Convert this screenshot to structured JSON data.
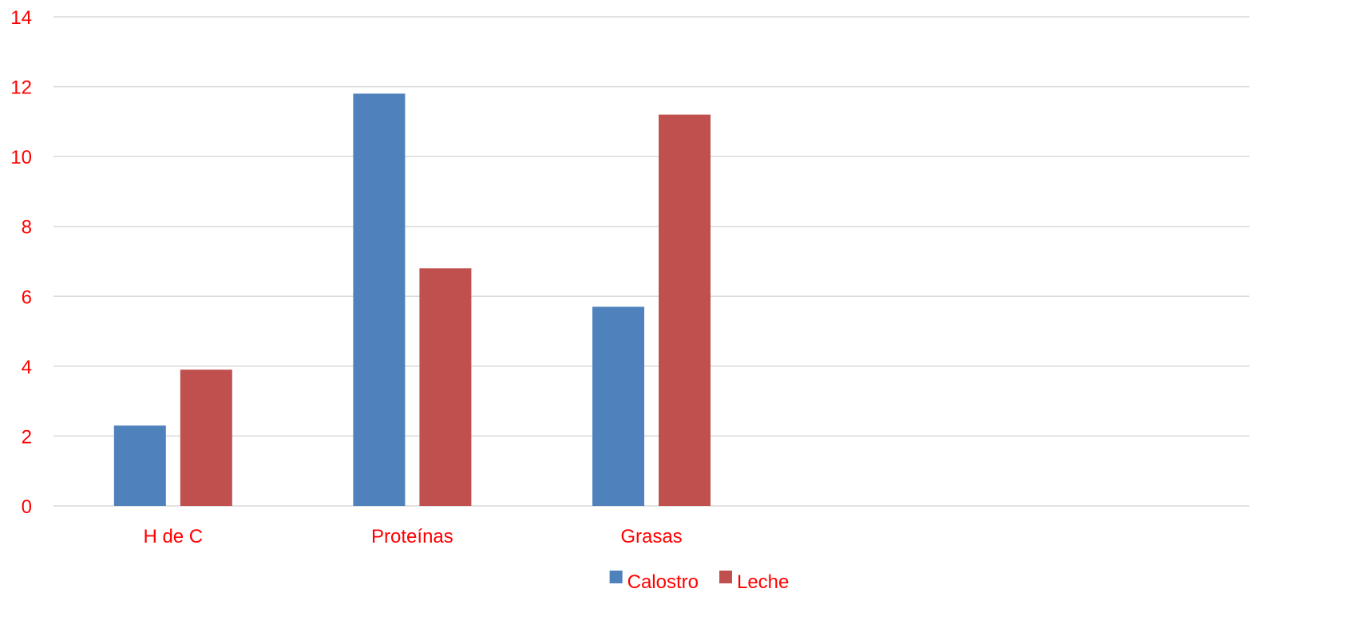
{
  "chart_data": {
    "type": "bar",
    "title": "",
    "xlabel": "",
    "ylabel": "",
    "categories": [
      "H de C",
      "Proteínas",
      "Grasas",
      "",
      ""
    ],
    "series": [
      {
        "name": "Calostro",
        "values": [
          2.3,
          11.8,
          5.7,
          null,
          null
        ],
        "color": "#4F81BD"
      },
      {
        "name": "Leche",
        "values": [
          3.9,
          6.8,
          11.2,
          null,
          null
        ],
        "color": "#C0504D"
      }
    ],
    "ylim": [
      0,
      14
    ],
    "yticks": [
      "0",
      "2",
      "4",
      "6",
      "8",
      "10",
      "12",
      "14"
    ],
    "grid": true,
    "legend_position": "bottom",
    "label_color": "#FF0000",
    "grid_color": "#D9D9D9"
  }
}
